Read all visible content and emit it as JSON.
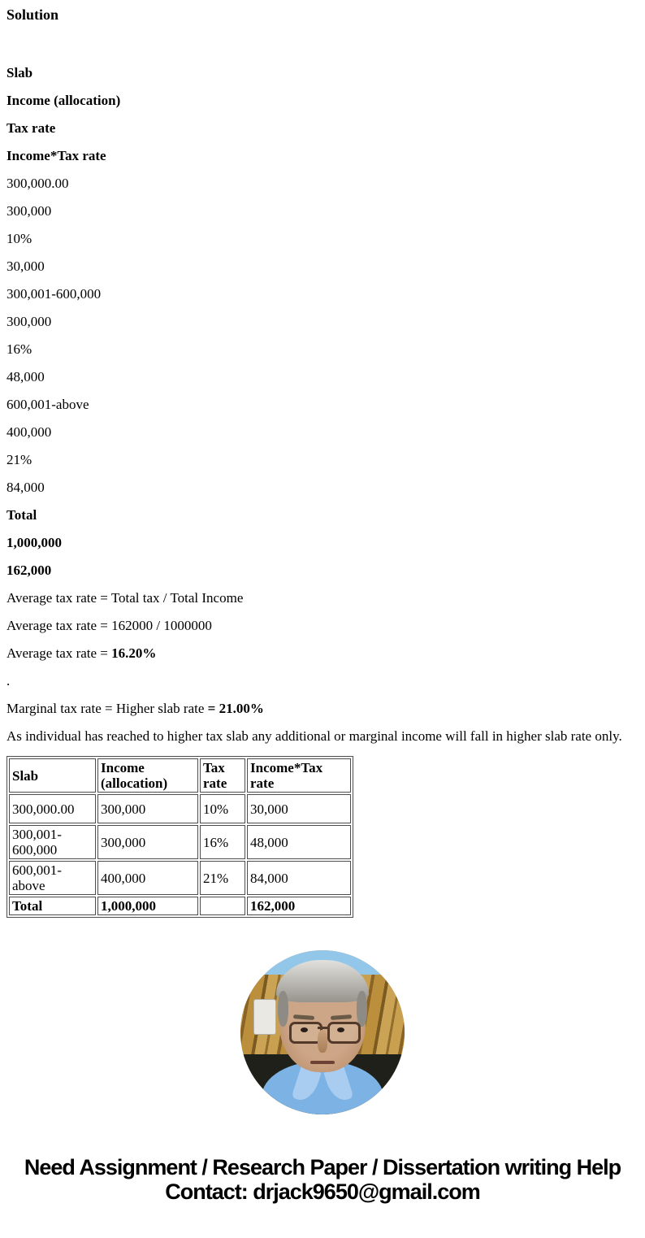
{
  "heading": "Solution",
  "pre_table": {
    "headers": [
      "Slab",
      "Income (allocation)",
      "Tax rate",
      "Income*Tax rate"
    ],
    "values": [
      "300,000.00",
      "300,000",
      "10%",
      "30,000",
      "300,001-600,000",
      "300,000",
      "16%",
      "48,000",
      "600,001-above",
      "400,000",
      "21%",
      "84,000",
      "Total",
      "1,000,000",
      "162,000"
    ]
  },
  "analysis": {
    "line1": "Average tax rate = Total tax / Total Income",
    "line2": "Average tax rate = 162000 / 1000000",
    "line3_prefix": "Average tax rate = ",
    "line3_value": "16.20%",
    "dot": ".",
    "line4_prefix": "Marginal tax rate = Higher slab rate ",
    "line4_value": "= 21.00%",
    "note": "As individual has reached to higher tax slab any additional or marginal income will fall in higher slab rate only."
  },
  "table": {
    "headers": [
      "Slab",
      "Income (allocation)",
      "Tax rate",
      "Income*Tax rate"
    ],
    "rows": [
      [
        "300,000.00",
        "300,000",
        "10%",
        "30,000"
      ],
      [
        "300,001-600,000",
        "300,000",
        "16%",
        "48,000"
      ],
      [
        "600,001-above",
        "400,000",
        "21%",
        "84,000"
      ],
      [
        "Total",
        "1,000,000",
        "",
        "162,000"
      ]
    ]
  },
  "footer": {
    "line1": "Need Assignment / Research Paper / Dissertation writing Help",
    "contact": "Contact: drjack9650@gmail.com"
  }
}
